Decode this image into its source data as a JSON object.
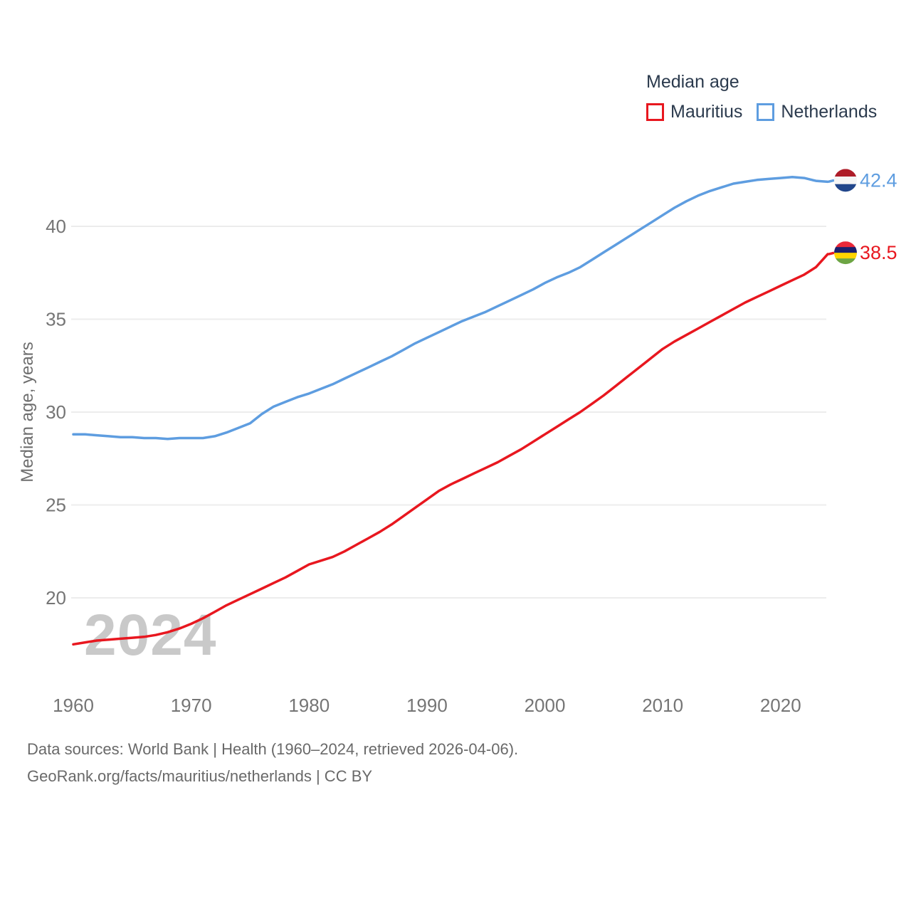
{
  "legend": {
    "title": "Median age",
    "items": [
      {
        "label": "Mauritius",
        "color": "#e8171f"
      },
      {
        "label": "Netherlands",
        "color": "#5e9de0"
      }
    ]
  },
  "chart_data": {
    "type": "line",
    "title": "Median age",
    "ylabel": "Median age, years",
    "xlabel": "",
    "xlim": [
      1960,
      2024
    ],
    "ylim": [
      16.5,
      44
    ],
    "x_ticks": [
      1960,
      1970,
      1980,
      1990,
      2000,
      2010,
      2020
    ],
    "y_ticks": [
      20,
      25,
      30,
      35,
      40
    ],
    "grid": "horizontal",
    "legend_position": "top-right",
    "x_start": 1960,
    "x_end": 2024,
    "series": [
      {
        "name": "Mauritius",
        "color": "#e8171f",
        "end_label": "38.5",
        "end_value": 38.5,
        "flag_colors": [
          "#EA2839",
          "#1A206D",
          "#FFD500",
          "#6DA544"
        ],
        "values": [
          17.5,
          17.6,
          17.7,
          17.75,
          17.8,
          17.85,
          17.9,
          18.0,
          18.15,
          18.35,
          18.6,
          18.9,
          19.25,
          19.6,
          19.9,
          20.2,
          20.5,
          20.8,
          21.1,
          21.45,
          21.8,
          22.0,
          22.2,
          22.5,
          22.85,
          23.2,
          23.55,
          23.95,
          24.4,
          24.85,
          25.3,
          25.75,
          26.1,
          26.4,
          26.7,
          27.0,
          27.3,
          27.65,
          28.0,
          28.4,
          28.8,
          29.2,
          29.6,
          30.0,
          30.45,
          30.9,
          31.4,
          31.9,
          32.4,
          32.9,
          33.4,
          33.8,
          34.15,
          34.5,
          34.85,
          35.2,
          35.55,
          35.9,
          36.2,
          36.5,
          36.8,
          37.1,
          37.4,
          37.8,
          38.5
        ]
      },
      {
        "name": "Netherlands",
        "color": "#5e9de0",
        "end_label": "42.4",
        "end_value": 42.4,
        "flag_colors": [
          "#AE1C28",
          "#F5F5F5",
          "#21468B"
        ],
        "values": [
          28.8,
          28.8,
          28.75,
          28.7,
          28.65,
          28.65,
          28.6,
          28.6,
          28.55,
          28.6,
          28.6,
          28.6,
          28.7,
          28.9,
          29.15,
          29.4,
          29.9,
          30.3,
          30.55,
          30.8,
          31.0,
          31.25,
          31.5,
          31.8,
          32.1,
          32.4,
          32.7,
          33.0,
          33.35,
          33.7,
          34.0,
          34.3,
          34.6,
          34.9,
          35.15,
          35.4,
          35.7,
          36.0,
          36.3,
          36.6,
          36.95,
          37.25,
          37.5,
          37.8,
          38.2,
          38.6,
          39.0,
          39.4,
          39.8,
          40.2,
          40.6,
          41.0,
          41.35,
          41.65,
          41.9,
          42.1,
          42.3,
          42.4,
          42.5,
          42.55,
          42.6,
          42.65,
          42.6,
          42.45,
          42.4
        ]
      }
    ]
  },
  "watermark": "2024",
  "footer": {
    "line1": "Data sources: World Bank | Health (1960–2024, retrieved 2026-04-06).",
    "line2": "GeoRank.org/facts/mauritius/netherlands | CC BY"
  }
}
